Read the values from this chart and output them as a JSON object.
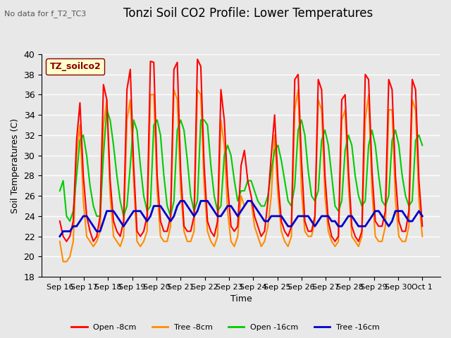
{
  "title": "Tonzi Soil CO2 Profile: Lower Temperatures",
  "subtitle": "No data for f_T2_TC3",
  "ylabel": "Soil Temperatures (C)",
  "xlabel": "Time",
  "ylim": [
    18,
    40
  ],
  "yticks": [
    18,
    20,
    22,
    24,
    26,
    28,
    30,
    32,
    34,
    36,
    38,
    40
  ],
  "xtick_labels": [
    "Sep 16",
    "Sep 17",
    "Sep 18",
    "Sep 19",
    "Sep 20",
    "Sep 21",
    "Sep 22",
    "Sep 23",
    "Sep 24",
    "Sep 25",
    "Sep 26",
    "Sep 27",
    "Sep 28",
    "Sep 29",
    "Sep 30",
    "Oct 1"
  ],
  "legend_label": "TZ_soilco2",
  "series": {
    "Open -8cm": {
      "color": "#ff0000",
      "lw": 1.5
    },
    "Tree -8cm": {
      "color": "#ff8c00",
      "lw": 1.5
    },
    "Open -16cm": {
      "color": "#00cc00",
      "lw": 1.5
    },
    "Tree -16cm": {
      "color": "#0000cc",
      "lw": 2.0
    }
  },
  "background_color": "#e8e8e8",
  "plot_bg_color": "#e8e8e8",
  "grid_color": "#ffffff",
  "open8_data": [
    23.5,
    22.0,
    21.5,
    22.0,
    23.5,
    31.5,
    35.2,
    28.0,
    24.0,
    22.5,
    21.5,
    22.0,
    24.0,
    37.0,
    35.5,
    27.5,
    23.5,
    22.5,
    22.0,
    23.5,
    36.5,
    38.5,
    29.0,
    22.5,
    22.0,
    22.5,
    24.0,
    39.3,
    39.2,
    28.0,
    23.5,
    22.5,
    22.5,
    24.0,
    38.5,
    39.2,
    28.5,
    23.0,
    22.5,
    22.5,
    24.0,
    39.5,
    38.8,
    29.0,
    23.5,
    22.5,
    22.0,
    23.5,
    36.5,
    33.5,
    27.0,
    23.0,
    22.5,
    23.0,
    29.0,
    30.5,
    27.5,
    26.0,
    24.0,
    23.0,
    22.0,
    22.5,
    25.5,
    30.0,
    34.0,
    27.5,
    23.5,
    22.5,
    22.0,
    23.0,
    37.5,
    38.0,
    29.5,
    23.5,
    22.5,
    22.5,
    24.0,
    37.5,
    36.5,
    28.0,
    23.5,
    22.0,
    21.5,
    22.0,
    35.5,
    36.0,
    28.5,
    23.0,
    22.0,
    21.5,
    22.5,
    38.0,
    37.5,
    28.5,
    23.5,
    23.0,
    23.0,
    24.5,
    37.5,
    36.5,
    28.0,
    23.5,
    22.5,
    22.5,
    24.5,
    37.5,
    36.5,
    27.5,
    23.0
  ],
  "tree8_data": [
    21.5,
    19.5,
    19.5,
    20.0,
    21.5,
    30.0,
    33.0,
    25.5,
    22.0,
    21.5,
    21.0,
    21.5,
    22.5,
    33.0,
    35.5,
    26.0,
    22.0,
    21.5,
    21.0,
    22.0,
    33.5,
    35.5,
    27.5,
    21.5,
    21.0,
    21.5,
    22.5,
    36.0,
    36.0,
    26.5,
    22.0,
    21.5,
    21.5,
    23.0,
    36.5,
    35.5,
    26.5,
    22.5,
    21.5,
    21.5,
    22.5,
    36.5,
    36.0,
    27.0,
    22.5,
    21.5,
    21.0,
    22.0,
    33.5,
    31.0,
    24.5,
    21.5,
    21.0,
    22.0,
    26.0,
    25.0,
    25.5,
    25.5,
    23.0,
    22.0,
    21.0,
    21.5,
    23.0,
    26.0,
    32.0,
    26.0,
    22.5,
    21.5,
    21.0,
    22.0,
    34.5,
    36.5,
    26.5,
    22.5,
    22.0,
    22.0,
    23.5,
    35.5,
    34.5,
    26.0,
    22.5,
    21.5,
    21.0,
    21.5,
    33.5,
    34.5,
    27.0,
    22.0,
    21.5,
    21.0,
    22.0,
    33.5,
    36.0,
    26.5,
    22.0,
    21.5,
    21.5,
    23.0,
    34.5,
    34.5,
    25.5,
    22.0,
    21.5,
    21.5,
    23.0,
    35.5,
    34.5,
    25.5,
    22.0
  ],
  "open16_data": [
    26.5,
    27.5,
    24.0,
    23.5,
    24.5,
    28.0,
    31.5,
    32.0,
    30.0,
    27.0,
    25.0,
    24.0,
    24.0,
    30.0,
    34.5,
    33.5,
    31.0,
    28.0,
    25.5,
    24.0,
    25.0,
    29.0,
    33.5,
    32.5,
    29.0,
    26.0,
    24.5,
    25.0,
    33.0,
    33.5,
    32.0,
    28.0,
    25.0,
    24.0,
    25.5,
    32.5,
    33.5,
    32.5,
    29.5,
    26.0,
    24.5,
    25.5,
    33.5,
    33.5,
    33.0,
    29.0,
    26.0,
    24.5,
    25.0,
    30.0,
    31.0,
    30.0,
    27.5,
    25.5,
    26.5,
    26.5,
    27.5,
    27.5,
    26.5,
    25.5,
    25.0,
    25.0,
    26.0,
    28.5,
    30.5,
    31.0,
    29.5,
    27.5,
    25.5,
    25.0,
    27.0,
    32.5,
    33.5,
    32.0,
    28.5,
    26.0,
    25.5,
    26.5,
    31.5,
    32.5,
    31.0,
    28.0,
    25.0,
    24.5,
    25.5,
    30.5,
    32.0,
    31.0,
    28.0,
    26.0,
    25.0,
    25.5,
    31.0,
    32.5,
    31.0,
    28.0,
    25.5,
    25.0,
    26.0,
    31.5,
    32.5,
    31.0,
    28.0,
    26.0,
    25.0,
    25.5,
    31.5,
    32.0,
    31.0
  ],
  "tree16_data": [
    22.0,
    22.5,
    22.5,
    22.5,
    23.0,
    23.0,
    23.5,
    24.0,
    24.0,
    23.5,
    23.0,
    22.5,
    22.5,
    23.5,
    24.5,
    24.5,
    24.5,
    24.0,
    23.5,
    23.0,
    23.5,
    24.0,
    24.5,
    24.5,
    24.5,
    24.0,
    23.5,
    24.0,
    25.0,
    25.0,
    25.0,
    24.5,
    24.0,
    23.5,
    24.0,
    25.0,
    25.5,
    25.5,
    25.0,
    24.5,
    24.0,
    24.5,
    25.5,
    25.5,
    25.5,
    25.0,
    24.5,
    24.0,
    24.0,
    24.5,
    25.0,
    25.0,
    24.5,
    24.0,
    24.5,
    25.0,
    25.5,
    25.5,
    25.0,
    24.5,
    24.0,
    23.5,
    23.5,
    24.0,
    24.0,
    24.0,
    24.0,
    23.5,
    23.0,
    23.0,
    23.5,
    24.0,
    24.0,
    24.0,
    24.0,
    23.5,
    23.0,
    23.5,
    24.0,
    24.0,
    24.0,
    23.5,
    23.5,
    23.0,
    23.0,
    23.5,
    24.0,
    24.0,
    23.5,
    23.0,
    23.0,
    23.0,
    23.5,
    24.0,
    24.5,
    24.5,
    24.0,
    23.5,
    23.0,
    23.5,
    24.5,
    24.5,
    24.5,
    24.0,
    23.5,
    23.5,
    24.0,
    24.5,
    24.0
  ]
}
